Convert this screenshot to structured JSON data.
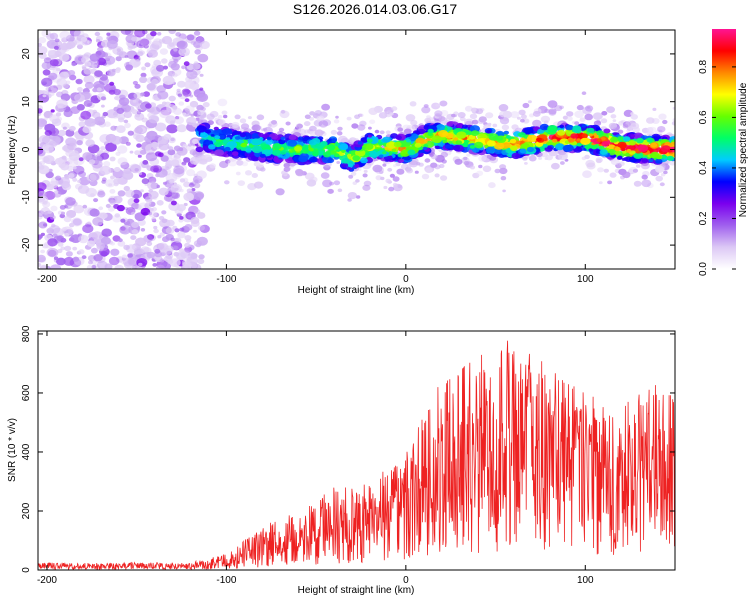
{
  "title": "S126.2026.014.03.06.G17",
  "colors": {
    "snr_line": "#ee2222",
    "axis": "#000000",
    "colorbar_stops": [
      "#ffffff",
      "#dcc8f5",
      "#a060ee",
      "#7a00ee",
      "#0000ff",
      "#00ccff",
      "#00ff66",
      "#66ff00",
      "#ffff00",
      "#ff8800",
      "#ff0000",
      "#ff1493"
    ]
  },
  "chart_data": [
    {
      "type": "heatmap",
      "name": "spectrogram",
      "xlabel": "Height of straight line (km)",
      "ylabel": "Frequency (Hz)",
      "xlim": [
        -205,
        150
      ],
      "ylim": [
        -25,
        25
      ],
      "xticks": [
        -200,
        -100,
        0,
        100
      ],
      "xtick_labels": [
        "-200",
        "-100",
        "0",
        "100"
      ],
      "yticks": [
        -20,
        -10,
        0,
        10,
        20
      ],
      "ytick_labels": [
        "-20",
        "-10",
        "0",
        "10",
        "20"
      ],
      "ridge": {
        "x": [
          -115,
          -100,
          -80,
          -60,
          -40,
          -30,
          -20,
          -10,
          0,
          10,
          20,
          40,
          60,
          80,
          100,
          120,
          140,
          150
        ],
        "freq": [
          2.5,
          1.5,
          0.5,
          0,
          0,
          -2,
          0.5,
          0.5,
          0,
          2,
          3,
          2,
          1,
          2.5,
          2.5,
          0.5,
          0,
          0
        ]
      },
      "colorbar": {
        "label": "Normalized spectral amplitude",
        "range": [
          0,
          0.95
        ],
        "ticks": [
          0.0,
          0.2,
          0.4,
          0.6,
          0.8
        ],
        "tick_labels": [
          "0.0",
          "0.2",
          "0.4",
          "0.6",
          "0.8"
        ]
      }
    },
    {
      "type": "line",
      "name": "snr",
      "xlabel": "Height of straight line (km)",
      "ylabel": "SNR (10 * v/v)",
      "xlim": [
        -205,
        150
      ],
      "ylim": [
        0,
        810
      ],
      "xticks": [
        -200,
        -100,
        0,
        100
      ],
      "xtick_labels": [
        "-200",
        "-100",
        "0",
        "100"
      ],
      "yticks": [
        0,
        200,
        400,
        600,
        800
      ],
      "ytick_labels": [
        "0",
        "200",
        "400",
        "600",
        "800"
      ],
      "envelope": {
        "x": [
          -205,
          -150,
          -120,
          -100,
          -80,
          -60,
          -40,
          -20,
          0,
          20,
          40,
          60,
          80,
          100,
          120,
          140,
          150
        ],
        "mean": [
          12,
          12,
          12,
          25,
          60,
          90,
          130,
          170,
          240,
          330,
          380,
          390,
          370,
          360,
          330,
          330,
          260
        ],
        "peak": [
          25,
          25,
          25,
          55,
          150,
          200,
          280,
          300,
          400,
          650,
          760,
          800,
          690,
          600,
          550,
          660,
          600
        ]
      }
    }
  ]
}
